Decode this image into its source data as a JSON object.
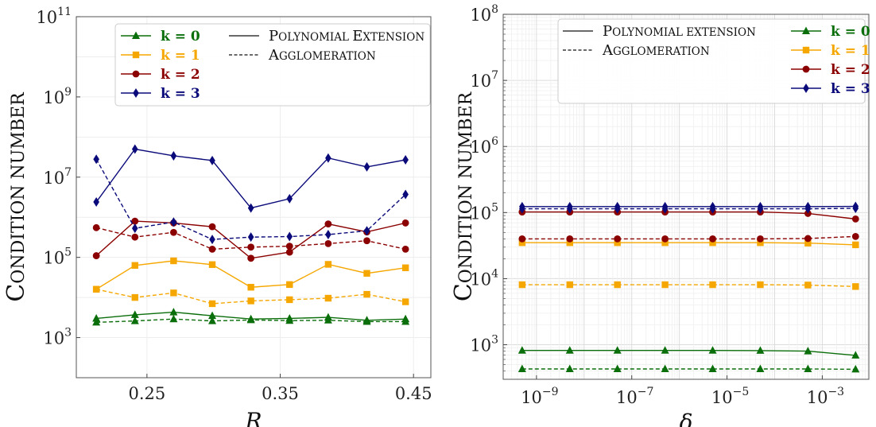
{
  "chart_data": [
    {
      "type": "line",
      "xlabel": "R",
      "ylabel": "Condition number",
      "yscale": "log",
      "xlim": [
        0.197,
        0.463
      ],
      "ylim": [
        100,
        100000000000
      ],
      "xticks": [
        0.25,
        0.35,
        0.45
      ],
      "xtick_labels": [
        "0.25",
        "0.35",
        "0.45"
      ],
      "yticks": [
        1000,
        100000,
        10000000,
        1000000000,
        100000000000
      ],
      "ytick_labels": [
        {
          "base": "10",
          "exp": "3"
        },
        {
          "base": "10",
          "exp": "5"
        },
        {
          "base": "10",
          "exp": "7"
        },
        {
          "base": "10",
          "exp": "9"
        },
        {
          "base": "10",
          "exp": "11"
        }
      ],
      "grid": true,
      "legend_placement": "top-right",
      "x": [
        0.212,
        0.241,
        0.27,
        0.299,
        0.328,
        0.357,
        0.386,
        0.415,
        0.444
      ],
      "series": [
        {
          "k": 0,
          "method": "polynomial",
          "color": "#0a6e0a",
          "marker": "triangle",
          "values": [
            3000,
            3700,
            4300,
            3500,
            2900,
            3000,
            3200,
            2700,
            2900
          ]
        },
        {
          "k": 0,
          "method": "agglomeration",
          "color": "#0a6e0a",
          "marker": "triangle",
          "values": [
            2400,
            2600,
            2900,
            2600,
            2750,
            2650,
            2700,
            2500,
            2500
          ]
        },
        {
          "k": 1,
          "method": "polynomial",
          "color": "#f5a700",
          "marker": "square",
          "values": [
            16000,
            63000,
            82000,
            66000,
            18000,
            21000,
            67000,
            40000,
            55000
          ]
        },
        {
          "k": 1,
          "method": "agglomeration",
          "color": "#f5a700",
          "marker": "square",
          "values": [
            16000,
            10000,
            13000,
            7000,
            8200,
            8800,
            9600,
            12000,
            7800
          ]
        },
        {
          "k": 2,
          "method": "polynomial",
          "color": "#8b0000",
          "marker": "circle",
          "values": [
            110000,
            800000,
            720000,
            580000,
            95000,
            135000,
            680000,
            430000,
            720000
          ]
        },
        {
          "k": 2,
          "method": "agglomeration",
          "color": "#8b0000",
          "marker": "circle",
          "values": [
            550000,
            320000,
            420000,
            160000,
            180000,
            190000,
            220000,
            260000,
            160000
          ]
        },
        {
          "k": 3,
          "method": "polynomial",
          "color": "#0a0a7a",
          "marker": "diamond",
          "values": [
            2400000,
            50000000,
            34000000,
            26000000,
            1700000,
            2900000,
            30000000,
            18000000,
            27000000
          ]
        },
        {
          "k": 3,
          "method": "agglomeration",
          "color": "#0a0a7a",
          "marker": "diamond",
          "values": [
            28000000,
            530000,
            760000,
            280000,
            320000,
            330000,
            370000,
            460000,
            3700000
          ]
        }
      ]
    },
    {
      "type": "line",
      "xlabel": "δ",
      "ylabel": "Condition number",
      "xscale": "log",
      "yscale": "log",
      "xlim": [
        2e-10,
        0.0095
      ],
      "ylim": [
        300,
        100000000
      ],
      "xticks": [
        1e-09,
        1e-07,
        1e-05,
        0.001
      ],
      "xtick_labels": [
        {
          "base": "10",
          "exp": "−9"
        },
        {
          "base": "10",
          "exp": "−7"
        },
        {
          "base": "10",
          "exp": "−5"
        },
        {
          "base": "10",
          "exp": "−3"
        }
      ],
      "yticks": [
        1000,
        10000,
        100000,
        1000000,
        10000000,
        100000000
      ],
      "ytick_labels": [
        {
          "base": "10",
          "exp": "3"
        },
        {
          "base": "10",
          "exp": "4"
        },
        {
          "base": "10",
          "exp": "5"
        },
        {
          "base": "10",
          "exp": "6"
        },
        {
          "base": "10",
          "exp": "7"
        },
        {
          "base": "10",
          "exp": "8"
        }
      ],
      "grid": true,
      "legend_placement": "top-right",
      "x": [
        5e-10,
        5e-09,
        5e-08,
        5e-07,
        5e-06,
        5e-05,
        0.0005,
        0.005
      ],
      "series": [
        {
          "k": 0,
          "method": "polynomial",
          "color": "#0a6e0a",
          "marker": "triangle",
          "values": [
            820,
            820,
            820,
            820,
            820,
            815,
            800,
            690
          ]
        },
        {
          "k": 0,
          "method": "agglomeration",
          "color": "#0a6e0a",
          "marker": "triangle",
          "values": [
            430,
            430,
            430,
            430,
            430,
            430,
            430,
            425
          ]
        },
        {
          "k": 1,
          "method": "polynomial",
          "color": "#f5a700",
          "marker": "square",
          "values": [
            35000,
            35000,
            35000,
            35000,
            35000,
            35000,
            34500,
            32500
          ]
        },
        {
          "k": 1,
          "method": "agglomeration",
          "color": "#f5a700",
          "marker": "square",
          "values": [
            8100,
            8100,
            8100,
            8100,
            8100,
            8100,
            8000,
            7600
          ]
        },
        {
          "k": 2,
          "method": "polynomial",
          "color": "#8b0000",
          "marker": "circle",
          "values": [
            102000,
            102000,
            102000,
            102000,
            102000,
            102000,
            97000,
            80000
          ]
        },
        {
          "k": 2,
          "method": "agglomeration",
          "color": "#8b0000",
          "marker": "circle",
          "values": [
            40000,
            40000,
            40000,
            40000,
            40000,
            40000,
            40500,
            43500
          ]
        },
        {
          "k": 3,
          "method": "polynomial",
          "color": "#0a0a7a",
          "marker": "diamond",
          "values": [
            123000,
            123000,
            123000,
            123000,
            123000,
            123000,
            123000,
            124000
          ]
        },
        {
          "k": 3,
          "method": "agglomeration",
          "color": "#0a0a7a",
          "marker": "diamond",
          "values": [
            114000,
            114000,
            114000,
            114000,
            114000,
            114000,
            114000,
            116000
          ]
        }
      ]
    }
  ],
  "legend_left": {
    "k_entries": [
      {
        "label": "k = 0",
        "color": "#0a6e0a",
        "marker": "triangle"
      },
      {
        "label": "k = 1",
        "color": "#f5a700",
        "marker": "square"
      },
      {
        "label": "k = 2",
        "color": "#8b0000",
        "marker": "circle"
      },
      {
        "label": "k = 3",
        "color": "#0a0a7a",
        "marker": "diamond"
      }
    ],
    "style_entries": [
      {
        "label": "Polynomial Extension",
        "dash": "solid"
      },
      {
        "label": "Agglomeration",
        "dash": "dashed"
      }
    ]
  },
  "legend_right": {
    "k_entries": [
      {
        "label": "k = 0",
        "color": "#0a6e0a",
        "marker": "triangle"
      },
      {
        "label": "k = 1",
        "color": "#f5a700",
        "marker": "square"
      },
      {
        "label": "k = 2",
        "color": "#8b0000",
        "marker": "circle"
      },
      {
        "label": "k = 3",
        "color": "#0a0a7a",
        "marker": "diamond"
      }
    ],
    "style_entries": [
      {
        "label": "Polynomial extension",
        "dash": "solid"
      },
      {
        "label": "Agglomeration",
        "dash": "dashed"
      }
    ]
  }
}
